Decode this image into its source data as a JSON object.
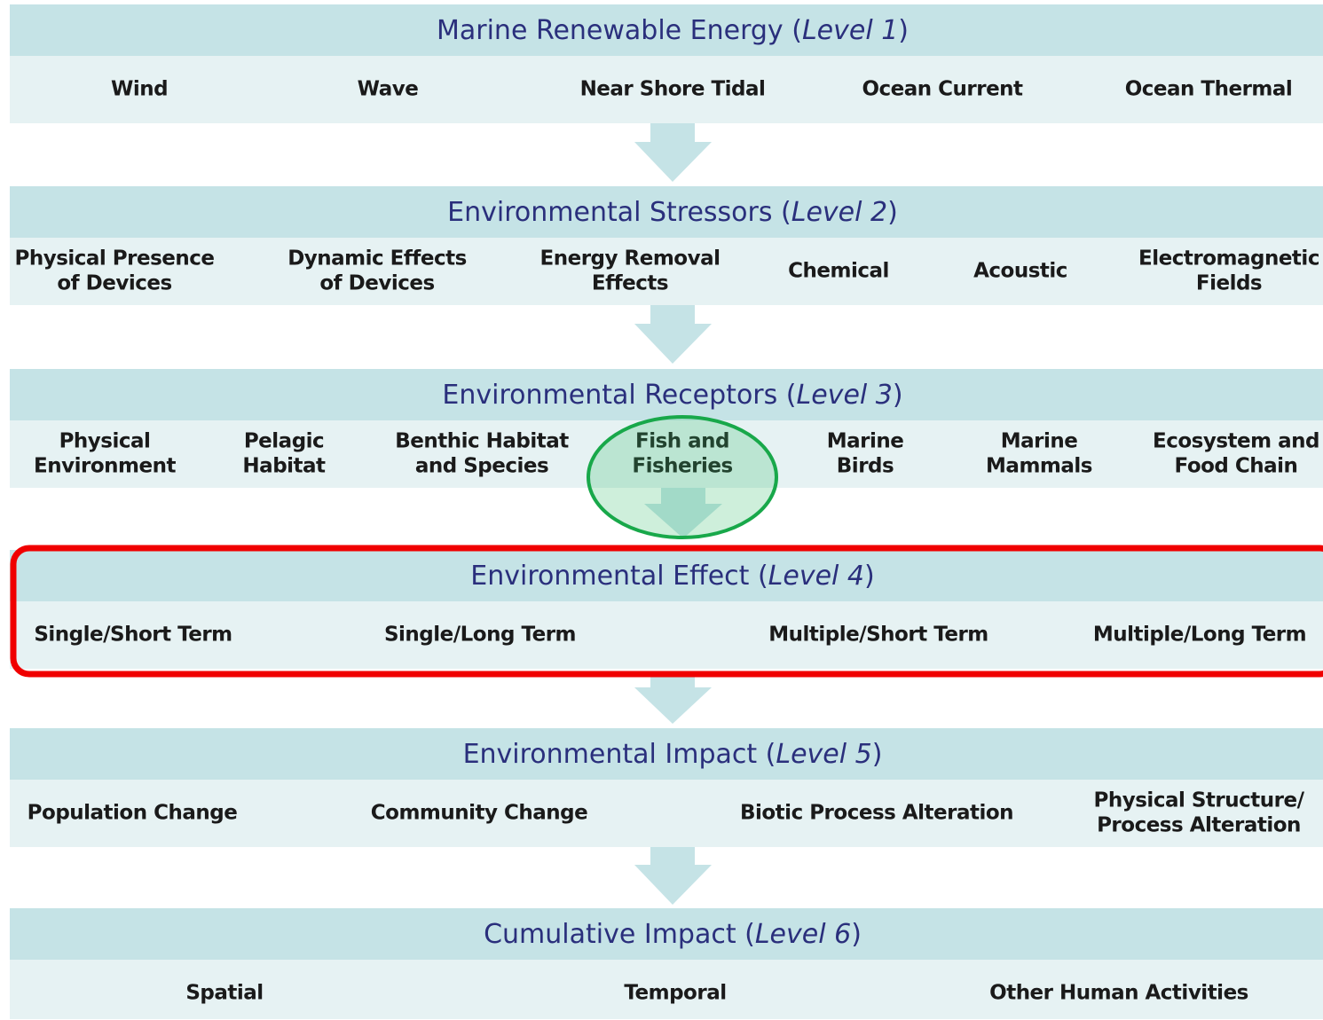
{
  "levels": [
    {
      "title_parts": [
        "Marine Renewable Energy (",
        "Level 1",
        ")"
      ],
      "items": [
        [
          "Wind"
        ],
        [
          "Wave"
        ],
        [
          "Near Shore Tidal"
        ],
        [
          "Ocean Current"
        ],
        [
          "Ocean Thermal"
        ]
      ]
    },
    {
      "title_parts": [
        "Environmental Stressors (",
        "Level 2",
        ")"
      ],
      "items": [
        [
          "Physical Presence",
          "of Devices"
        ],
        [
          "Dynamic Effects",
          "of Devices"
        ],
        [
          "Energy Removal",
          "Effects"
        ],
        [
          "Chemical"
        ],
        [
          "Acoustic"
        ],
        [
          "Electromagnetic",
          "Fields"
        ]
      ]
    },
    {
      "title_parts": [
        "Environmental Receptors (",
        "Level 3",
        ")"
      ],
      "items": [
        [
          "Physical",
          "Environment"
        ],
        [
          "Pelagic",
          "Habitat"
        ],
        [
          "Benthic Habitat",
          "and Species"
        ],
        [
          "Fish and",
          "Fisheries"
        ],
        [
          "Marine",
          "Birds"
        ],
        [
          "Marine",
          "Mammals"
        ],
        [
          "Ecosystem and",
          "Food Chain"
        ]
      ]
    },
    {
      "title_parts": [
        "Environmental Effect (",
        "Level 4",
        ")"
      ],
      "items": [
        [
          "Single/Short Term"
        ],
        [
          "Single/Long Term"
        ],
        [
          "Multiple/Short Term"
        ],
        [
          "Multiple/Long Term"
        ]
      ]
    },
    {
      "title_parts": [
        "Environmental Impact (",
        "Level 5",
        ")"
      ],
      "items": [
        [
          "Population Change"
        ],
        [
          "Community Change"
        ],
        [
          "Biotic Process Alteration"
        ],
        [
          "Physical Structure/",
          "Process Alteration"
        ]
      ]
    },
    {
      "title_parts": [
        "Cumulative Impact (",
        "Level 6",
        ")"
      ],
      "items": [
        [
          "Spatial"
        ],
        [
          "Temporal"
        ],
        [
          "Other Human Activities"
        ]
      ]
    }
  ]
}
